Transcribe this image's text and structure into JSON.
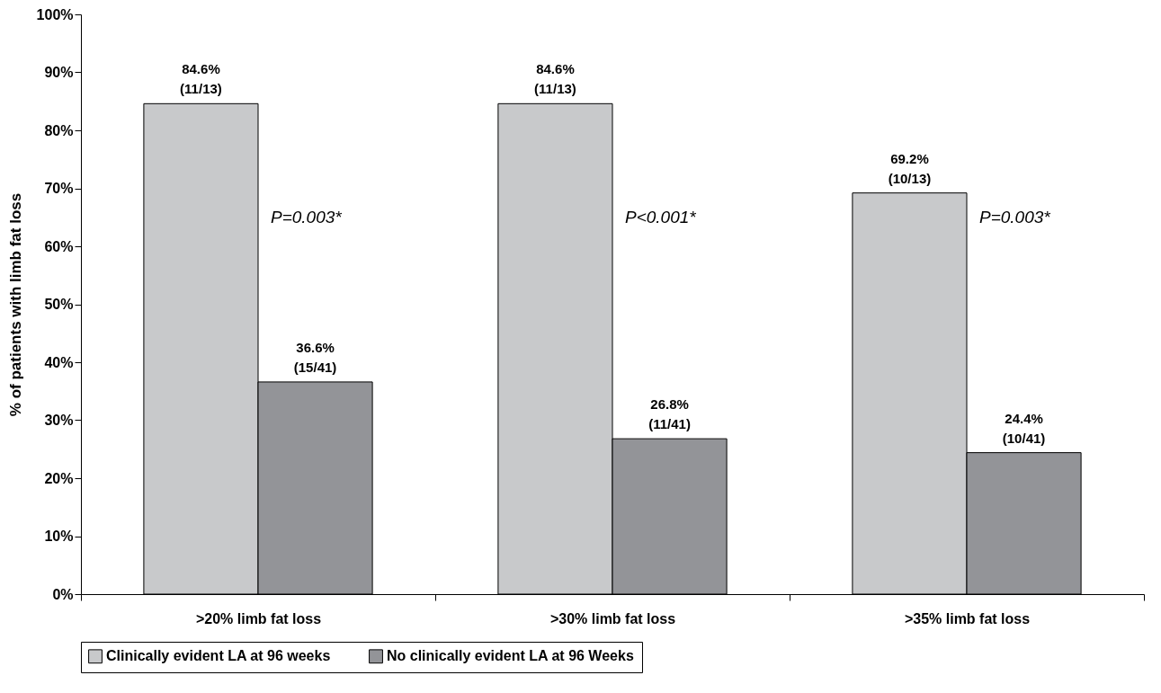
{
  "chart_data": {
    "type": "bar",
    "categories": [
      ">20% limb fat loss",
      ">30% limb fat loss",
      ">35% limb fat loss"
    ],
    "ylabel": "% of patients with limb fat loss",
    "series": [
      {
        "name": "Clinically evident LA at 96 weeks",
        "color": "#c8c9cb",
        "values": [
          84.6,
          84.6,
          69.2
        ],
        "value_labels": [
          "84.6%\n(11/13)",
          "84.6%\n(11/13)",
          "69.2%\n(10/13)"
        ]
      },
      {
        "name": "No clinically evident LA at 96 Weeks",
        "color": "#939498",
        "values": [
          36.6,
          26.8,
          24.4
        ],
        "value_labels": [
          "36.6%\n(15/41)",
          "26.8%\n(11/41)",
          "24.4%\n(10/41)"
        ]
      }
    ],
    "annotations": [
      {
        "text": "P=0.003*",
        "x": ">20% limb fat loss",
        "y": 65
      },
      {
        "text": "P<0.001*",
        "x": ">30% limb fat loss",
        "y": 65
      },
      {
        "text": "P=0.003*",
        "x": ">35% limb fat loss",
        "y": 65
      }
    ],
    "ylim": [
      0,
      100
    ],
    "yticks": [
      {
        "value": 0,
        "label": "0%"
      },
      {
        "value": 10,
        "label": "10%"
      },
      {
        "value": 20,
        "label": "20%"
      },
      {
        "value": 30,
        "label": "30%"
      },
      {
        "value": 40,
        "label": "40%"
      },
      {
        "value": 50,
        "label": "50%"
      },
      {
        "value": 60,
        "label": "60%"
      },
      {
        "value": 70,
        "label": "70%"
      },
      {
        "value": 80,
        "label": "80%"
      },
      {
        "value": 90,
        "label": "90%"
      },
      {
        "value": 100,
        "label": "100%"
      }
    ],
    "grid": false,
    "legend": "bottom"
  }
}
